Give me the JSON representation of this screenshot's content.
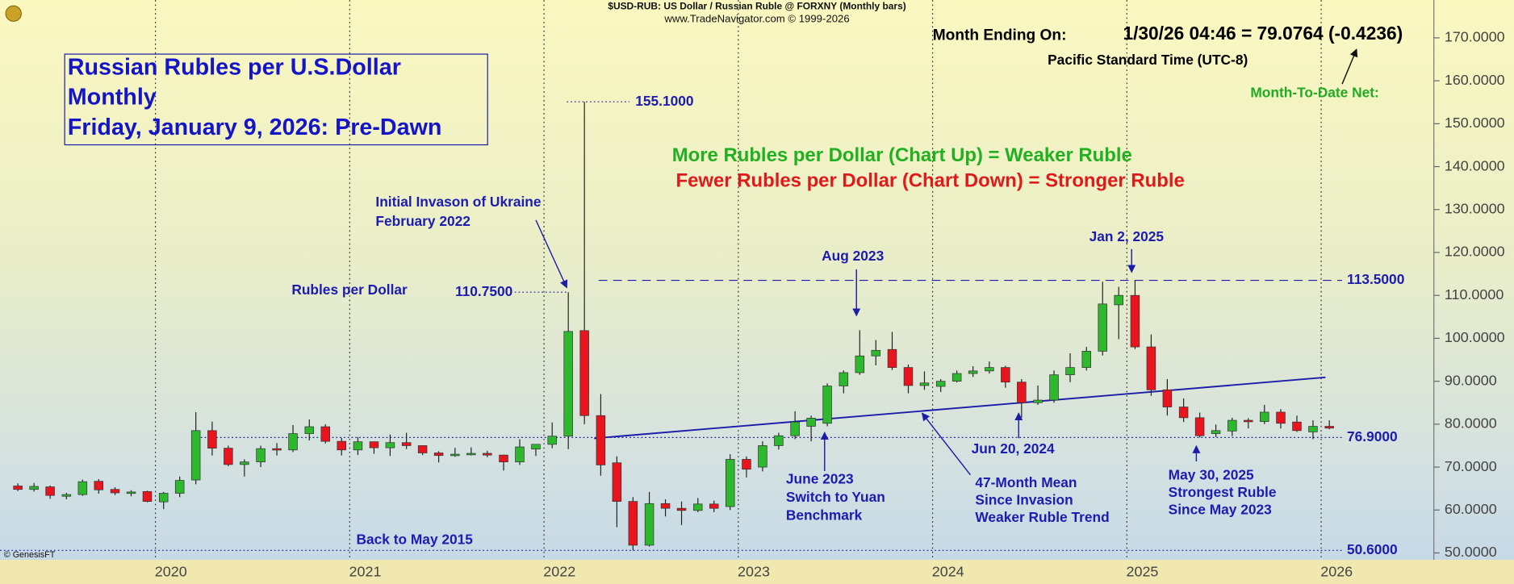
{
  "chart_data": {
    "type": "candlestick",
    "header": [
      "$USD-RUB:  US Dollar / Russian Ruble @ FORXNY  (Monthly bars)",
      "www.TradeNavigator.com © 1999-2026"
    ],
    "title": [
      "Russian Rubles per U.S.Dollar",
      "Monthly",
      "Friday, January 9, 2026: Pre-Dawn"
    ],
    "quote": {
      "label": "Month Ending On:",
      "value_text": "1/30/26 04:46 = 79.0764 (-0.4236)",
      "timezone": "Pacific Standard Time (UTC-8)",
      "net_label": "Month-To-Date Net:"
    },
    "legend_notes": [
      {
        "text": "More Rubles per Dollar (Chart Up) = Weaker Ruble",
        "color": "#22b022"
      },
      {
        "text": "Fewer Rubles per Dollar (Chart Down) = Stronger Ruble",
        "color": "#e01a1a"
      }
    ],
    "annotations": [
      [
        "Initial Invason of Ukraine",
        "February 2022"
      ],
      [
        "Rubles per Dollar"
      ],
      [
        "Aug 2023"
      ],
      [
        "Jan 2, 2025"
      ],
      [
        "June 2023",
        "Switch to Yuan",
        "Benchmark"
      ],
      [
        "Jun 20, 2024"
      ],
      [
        "47-Month Mean",
        "Since Invasion",
        "Weaker Ruble Trend"
      ],
      [
        "May 30, 2025",
        "Strongest Ruble",
        "Since May 2023"
      ],
      [
        "Back to May 2015"
      ]
    ],
    "source": "© GenesisFT",
    "up_color": "#2db82d",
    "down_color": "#e8141e",
    "grid": "x",
    "xlim": [
      2019.2,
      2026.58
    ],
    "xticks": [
      2020,
      2021,
      2022,
      2023,
      2024,
      2025,
      2026
    ],
    "ylim": [
      48.4,
      178.8
    ],
    "yticks": [
      {
        "value": 50,
        "label": "50.0000"
      },
      {
        "value": 60,
        "label": "60.0000"
      },
      {
        "value": 70,
        "label": "70.0000"
      },
      {
        "value": 80,
        "label": "80.0000"
      },
      {
        "value": 90,
        "label": "90.0000"
      },
      {
        "value": 100,
        "label": "100.0000"
      },
      {
        "value": 110,
        "label": "110.0000"
      },
      {
        "value": 120,
        "label": "120.0000"
      },
      {
        "value": 130,
        "label": "130.0000"
      },
      {
        "value": 140,
        "label": "140.0000"
      },
      {
        "value": 150,
        "label": "150.0000"
      },
      {
        "value": 160,
        "label": "160.0000"
      },
      {
        "value": 170,
        "label": "170.0000"
      }
    ],
    "reference_lines": [
      {
        "value": 113.5,
        "label": "113.5000",
        "style": "dashed"
      },
      {
        "value": 76.9,
        "label": "76.9000",
        "style": "dotted"
      },
      {
        "value": 50.6,
        "label": "50.6000",
        "style": "dotted"
      },
      {
        "value": 155.1,
        "label": "155.1000",
        "style": "dotted"
      },
      {
        "value": 110.75,
        "label": "110.7500",
        "style": "dotted"
      }
    ],
    "trend_line": {
      "x": [
        2022.258,
        2026.022
      ],
      "values": [
        76.7,
        90.9
      ],
      "color": "#1c1caa"
    },
    "x": [
      2019.292,
      2019.375,
      2019.458,
      2019.542,
      2019.625,
      2019.708,
      2019.792,
      2019.875,
      2019.958,
      2020.042,
      2020.125,
      2020.208,
      2020.292,
      2020.375,
      2020.458,
      2020.542,
      2020.625,
      2020.708,
      2020.792,
      2020.875,
      2020.958,
      2021.042,
      2021.125,
      2021.208,
      2021.292,
      2021.375,
      2021.458,
      2021.542,
      2021.625,
      2021.708,
      2021.792,
      2021.875,
      2021.958,
      2022.042,
      2022.125,
      2022.208,
      2022.292,
      2022.375,
      2022.458,
      2022.542,
      2022.625,
      2022.708,
      2022.792,
      2022.875,
      2022.958,
      2023.042,
      2023.125,
      2023.208,
      2023.292,
      2023.375,
      2023.458,
      2023.542,
      2023.625,
      2023.708,
      2023.792,
      2023.875,
      2023.958,
      2024.042,
      2024.125,
      2024.208,
      2024.292,
      2024.375,
      2024.458,
      2024.542,
      2024.625,
      2024.708,
      2024.792,
      2024.875,
      2024.958,
      2025.042,
      2025.125,
      2025.208,
      2025.292,
      2025.375,
      2025.458,
      2025.542,
      2025.625,
      2025.708,
      2025.792,
      2025.875,
      2025.958,
      2026.042
    ],
    "open": [
      65.6,
      64.8,
      65.4,
      63.2,
      63.6,
      66.7,
      64.8,
      64.0,
      64.3,
      61.9,
      63.9,
      67.0,
      78.5,
      74.4,
      70.6,
      71.2,
      74.3,
      74.0,
      77.8,
      79.4,
      76.0,
      74.0,
      75.9,
      74.5,
      75.7,
      75.0,
      73.3,
      72.7,
      73.0,
      73.2,
      72.8,
      71.2,
      74.2,
      75.3,
      77.2,
      101.8,
      82.0,
      71.0,
      62.0,
      51.8,
      61.5,
      60.4,
      59.9,
      61.4,
      60.8,
      71.8,
      70.0,
      75.0,
      77.3,
      79.5,
      80.2,
      88.9,
      92.0,
      95.9,
      97.4,
      93.2,
      89.0,
      88.8,
      90.0,
      91.8,
      92.4,
      93.2,
      89.8,
      85.0,
      85.6,
      91.5,
      93.2,
      97.0,
      107.8,
      110.0,
      98.0,
      88.0,
      84.0,
      81.5,
      77.8,
      78.4,
      80.9,
      80.6,
      82.8,
      80.5,
      78.2,
      79.5
    ],
    "high": [
      66.2,
      66.3,
      65.7,
      64.0,
      67.1,
      67.2,
      65.3,
      64.6,
      64.5,
      64.2,
      67.8,
      82.8,
      80.6,
      75.0,
      71.8,
      75.0,
      75.6,
      79.8,
      81.1,
      80.0,
      76.8,
      77.0,
      76.0,
      77.6,
      78.0,
      75.1,
      73.7,
      74.5,
      74.6,
      73.8,
      72.9,
      76.5,
      75.2,
      80.4,
      110.75,
      155.1,
      87.0,
      72.5,
      63.0,
      64.2,
      62.5,
      62.0,
      62.8,
      62.2,
      73.0,
      72.5,
      76.0,
      78.0,
      83.0,
      82.0,
      89.5,
      92.5,
      101.9,
      99.6,
      101.5,
      93.9,
      92.3,
      90.5,
      92.5,
      93.5,
      94.6,
      93.6,
      90.5,
      89.0,
      92.5,
      96.5,
      98.0,
      113.2,
      112.0,
      113.5,
      100.9,
      90.5,
      86.0,
      82.7,
      79.9,
      81.5,
      81.4,
      84.5,
      83.5,
      82.0,
      80.9,
      80.9
    ],
    "low": [
      64.4,
      64.3,
      62.6,
      62.5,
      63.3,
      63.8,
      63.5,
      63.2,
      61.8,
      60.2,
      63.0,
      66.0,
      72.7,
      70.2,
      67.8,
      70.0,
      72.7,
      73.5,
      76.2,
      75.5,
      72.7,
      72.8,
      73.1,
      72.6,
      74.2,
      72.8,
      71.1,
      72.4,
      72.7,
      72.3,
      69.2,
      70.5,
      72.6,
      74.4,
      74.2,
      80.0,
      68.0,
      56.0,
      50.6,
      51.5,
      58.5,
      56.5,
      59.5,
      59.5,
      60.0,
      67.6,
      69.0,
      74.1,
      76.5,
      76.0,
      79.5,
      87.2,
      91.5,
      93.7,
      92.6,
      87.2,
      88.0,
      87.5,
      89.7,
      91.0,
      91.8,
      88.5,
      81.5,
      84.5,
      85.0,
      89.8,
      92.5,
      96.0,
      99.8,
      97.5,
      86.6,
      82.0,
      80.5,
      76.9,
      77.0,
      77.2,
      79.0,
      80.0,
      79.0,
      78.2,
      76.5,
      78.8
    ],
    "close": [
      64.8,
      65.5,
      63.4,
      63.6,
      66.6,
      64.7,
      64.0,
      64.2,
      62.0,
      63.9,
      66.9,
      78.5,
      74.4,
      70.6,
      71.2,
      74.3,
      74.0,
      77.8,
      79.4,
      76.0,
      74.0,
      75.9,
      74.5,
      75.7,
      75.0,
      73.3,
      72.7,
      73.0,
      73.2,
      72.8,
      71.2,
      74.7,
      75.3,
      77.2,
      101.6,
      82.0,
      70.5,
      62.0,
      51.8,
      61.5,
      60.4,
      59.9,
      61.4,
      60.4,
      71.8,
      69.5,
      75.0,
      77.3,
      80.5,
      81.4,
      88.9,
      92.0,
      95.9,
      97.2,
      93.2,
      89.0,
      89.6,
      90.0,
      91.8,
      92.4,
      93.2,
      89.8,
      85.0,
      85.6,
      91.5,
      93.2,
      97.0,
      108.0,
      110.0,
      98.0,
      88.0,
      84.0,
      81.5,
      77.3,
      78.5,
      80.9,
      80.6,
      82.8,
      80.2,
      78.5,
      79.5,
      79.08
    ]
  }
}
